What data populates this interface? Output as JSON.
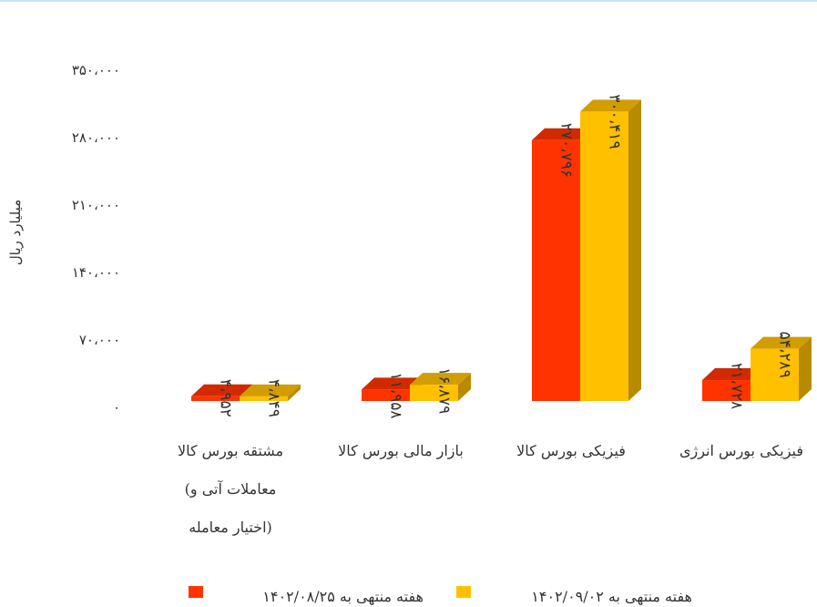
{
  "chart_data": {
    "type": "bar",
    "style": "3d-clustered-column",
    "title": "",
    "xlabel": "",
    "ylabel": "میلیارد ریال",
    "ylim": [
      0,
      350000
    ],
    "yticks": [
      0,
      70000,
      140000,
      210000,
      280000,
      350000
    ],
    "ytick_labels": [
      "۰",
      "۷۰،۰۰۰",
      "۱۴۰،۰۰۰",
      "۲۱۰،۰۰۰",
      "۲۸۰،۰۰۰",
      "۳۵۰،۰۰۰"
    ],
    "grid": false,
    "legend_position": "bottom",
    "categories": [
      [
        "فیزیکی بورس انرژی"
      ],
      [
        "فیزیکی بورس کالا"
      ],
      [
        "بازار مالی بورس کالا"
      ],
      [
        "مشتقه بورس کالا",
        "(معاملات آتی و",
        "اختیار معامله)"
      ]
    ],
    "series": [
      {
        "name": "هفته منتهی به ۱۴۰۲/۰۸/۲۵",
        "color": "#ff3300",
        "values": [
          21728,
          270796,
          11958,
          4952
        ],
        "labels": [
          "۲۱،۷۲۸",
          "۲۷۰،۷۹۶",
          "۱۱،۹۵۸",
          "۴،۹۵۲"
        ]
      },
      {
        "name": "هفته منتهی به ۱۴۰۲/۰۹/۰۲",
        "color": "#ffc000",
        "values": [
          54289,
          300419,
          16879,
          4849
        ],
        "labels": [
          "۵۴،۲۸۹",
          "۳۰۰،۴۱۹",
          "۱۶،۸۷۹",
          "۴،۸۴۹"
        ]
      }
    ]
  }
}
